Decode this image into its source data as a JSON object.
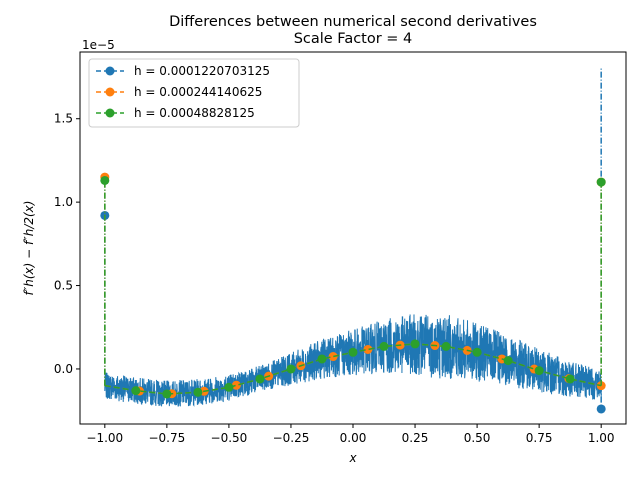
{
  "chart_data": {
    "type": "line",
    "title": "Differences between numerical second derivatives",
    "subtitle": "Scale Factor = 4",
    "xlabel": "x",
    "ylabel": "f″h(x) − f″h/2(x)",
    "y_exponent_label": "1e−5",
    "y_multiplier": 1e-05,
    "xlim": [
      -1.1,
      1.1
    ],
    "ylim": [
      -0.33,
      1.9
    ],
    "x_ticks": [
      -1.0,
      -0.75,
      -0.5,
      -0.25,
      0.0,
      0.25,
      0.5,
      0.75,
      1.0
    ],
    "x_tick_labels": [
      "−1.00",
      "−0.75",
      "−0.50",
      "−0.25",
      "0.00",
      "0.25",
      "0.50",
      "0.75",
      "1.00"
    ],
    "y_ticks": [
      0.0,
      0.5,
      1.0,
      1.5
    ],
    "y_tick_labels": [
      "0.0",
      "0.5",
      "1.0",
      "1.5"
    ],
    "legend_position": "top-left",
    "series": [
      {
        "name": "h = 0.0001220703125",
        "color": "#1f77b4",
        "noisy": true,
        "x": [
          -1.0,
          -0.875,
          -0.75,
          -0.625,
          -0.5,
          -0.375,
          -0.25,
          -0.125,
          0.0,
          0.125,
          0.25,
          0.375,
          0.5,
          0.625,
          0.75,
          0.875,
          1.0
        ],
        "y": [
          -0.1,
          -0.13,
          -0.15,
          -0.14,
          -0.11,
          -0.06,
          0.0,
          0.06,
          0.1,
          0.135,
          0.15,
          0.135,
          0.1,
          0.05,
          -0.01,
          -0.06,
          -0.1
        ],
        "endpoint_markers": [
          [
            -1.0,
            0.92
          ],
          [
            1.0,
            -0.24
          ]
        ],
        "spikes": [
          [
            -1.0,
            1.12
          ],
          [
            1.0,
            1.8
          ]
        ]
      },
      {
        "name": "h = 0.000244140625",
        "color": "#ff7f0e",
        "noisy": false,
        "x": [
          -1.0,
          -0.875,
          -0.75,
          -0.625,
          -0.5,
          -0.375,
          -0.25,
          -0.125,
          0.0,
          0.125,
          0.25,
          0.375,
          0.5,
          0.625,
          0.75,
          0.875,
          1.0
        ],
        "y": [
          -0.1,
          -0.13,
          -0.15,
          -0.14,
          -0.11,
          -0.06,
          0.0,
          0.06,
          0.1,
          0.135,
          0.15,
          0.135,
          0.1,
          0.05,
          -0.01,
          -0.06,
          -0.1
        ],
        "endpoint_markers": [
          [
            -1.0,
            1.15
          ],
          [
            1.0,
            1.12
          ]
        ],
        "marker_x": [
          -0.86,
          -0.73,
          -0.6,
          -0.47,
          -0.34,
          -0.21,
          -0.08,
          0.06,
          0.19,
          0.33,
          0.46,
          0.6,
          0.73,
          0.87,
          1.0
        ],
        "spikes": []
      },
      {
        "name": "h = 0.00048828125",
        "color": "#2ca02c",
        "noisy": false,
        "x": [
          -1.0,
          -0.875,
          -0.75,
          -0.625,
          -0.5,
          -0.375,
          -0.25,
          -0.125,
          0.0,
          0.125,
          0.25,
          0.375,
          0.5,
          0.625,
          0.75,
          0.875,
          1.0
        ],
        "y": [
          -0.1,
          -0.13,
          -0.15,
          -0.14,
          -0.11,
          -0.06,
          0.0,
          0.06,
          0.1,
          0.135,
          0.15,
          0.135,
          0.1,
          0.05,
          -0.01,
          -0.06,
          -0.1
        ],
        "endpoint_markers": [
          [
            -1.0,
            1.13
          ],
          [
            1.0,
            1.12
          ]
        ],
        "marker_x": [
          -0.875,
          -0.75,
          -0.625,
          -0.5,
          -0.375,
          -0.25,
          -0.125,
          0.0,
          0.125,
          0.25,
          0.375,
          0.5,
          0.625,
          0.75,
          0.875
        ],
        "spikes": []
      }
    ]
  }
}
